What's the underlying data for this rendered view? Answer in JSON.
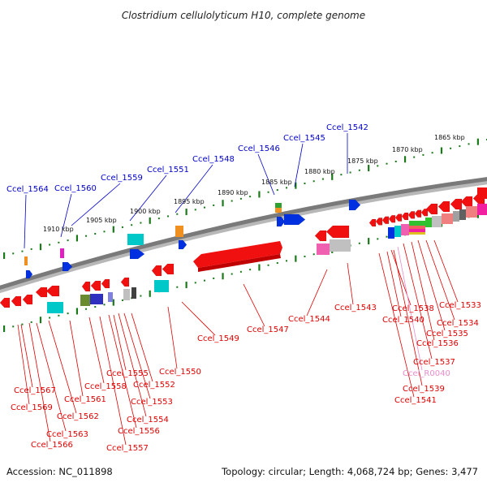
{
  "title": "Clostridium cellulolyticum H10, complete genome",
  "accession": "Accession: NC_011898",
  "topology": "Topology: circular; Length: 4,068,724 bp; Genes: 3,477",
  "colors": {
    "forward_label": "#0000cc",
    "reverse_label": "#e00000",
    "rna_label": "#e88ccc",
    "backbone": "#7a7a7a",
    "ruler": "#1a7a1a"
  },
  "ruler_labels": [
    "1865 kbp",
    "1870 kbp",
    "1875 kbp",
    "1880 kbp",
    "1885 kbp",
    "1890 kbp",
    "1895 kbp",
    "1900 kbp",
    "1905 kbp",
    "1910 kbp"
  ],
  "forward_labels": [
    "Ccel_1542",
    "Ccel_1545",
    "Ccel_1546",
    "Ccel_1548",
    "Ccel_1551",
    "Ccel_1559",
    "Ccel_1560",
    "Ccel_1564"
  ],
  "reverse_labels": [
    "Ccel_1533",
    "Ccel_1534",
    "Ccel_1535",
    "Ccel_1536",
    "Ccel_1537",
    "Ccel_1538",
    "Ccel_1539",
    "Ccel_1540",
    "Ccel_1541",
    "Ccel_1543",
    "Ccel_1544",
    "Ccel_1547",
    "Ccel_1549",
    "Ccel_1550",
    "Ccel_1552",
    "Ccel_1553",
    "Ccel_1554",
    "Ccel_1555",
    "Ccel_1556",
    "Ccel_1557",
    "Ccel_1558",
    "Ccel_1561",
    "Ccel_1562",
    "Ccel_1563",
    "Ccel_1566",
    "Ccel_1567",
    "Ccel_1569"
  ],
  "rna_labels": [
    "Ccel_R0040"
  ]
}
